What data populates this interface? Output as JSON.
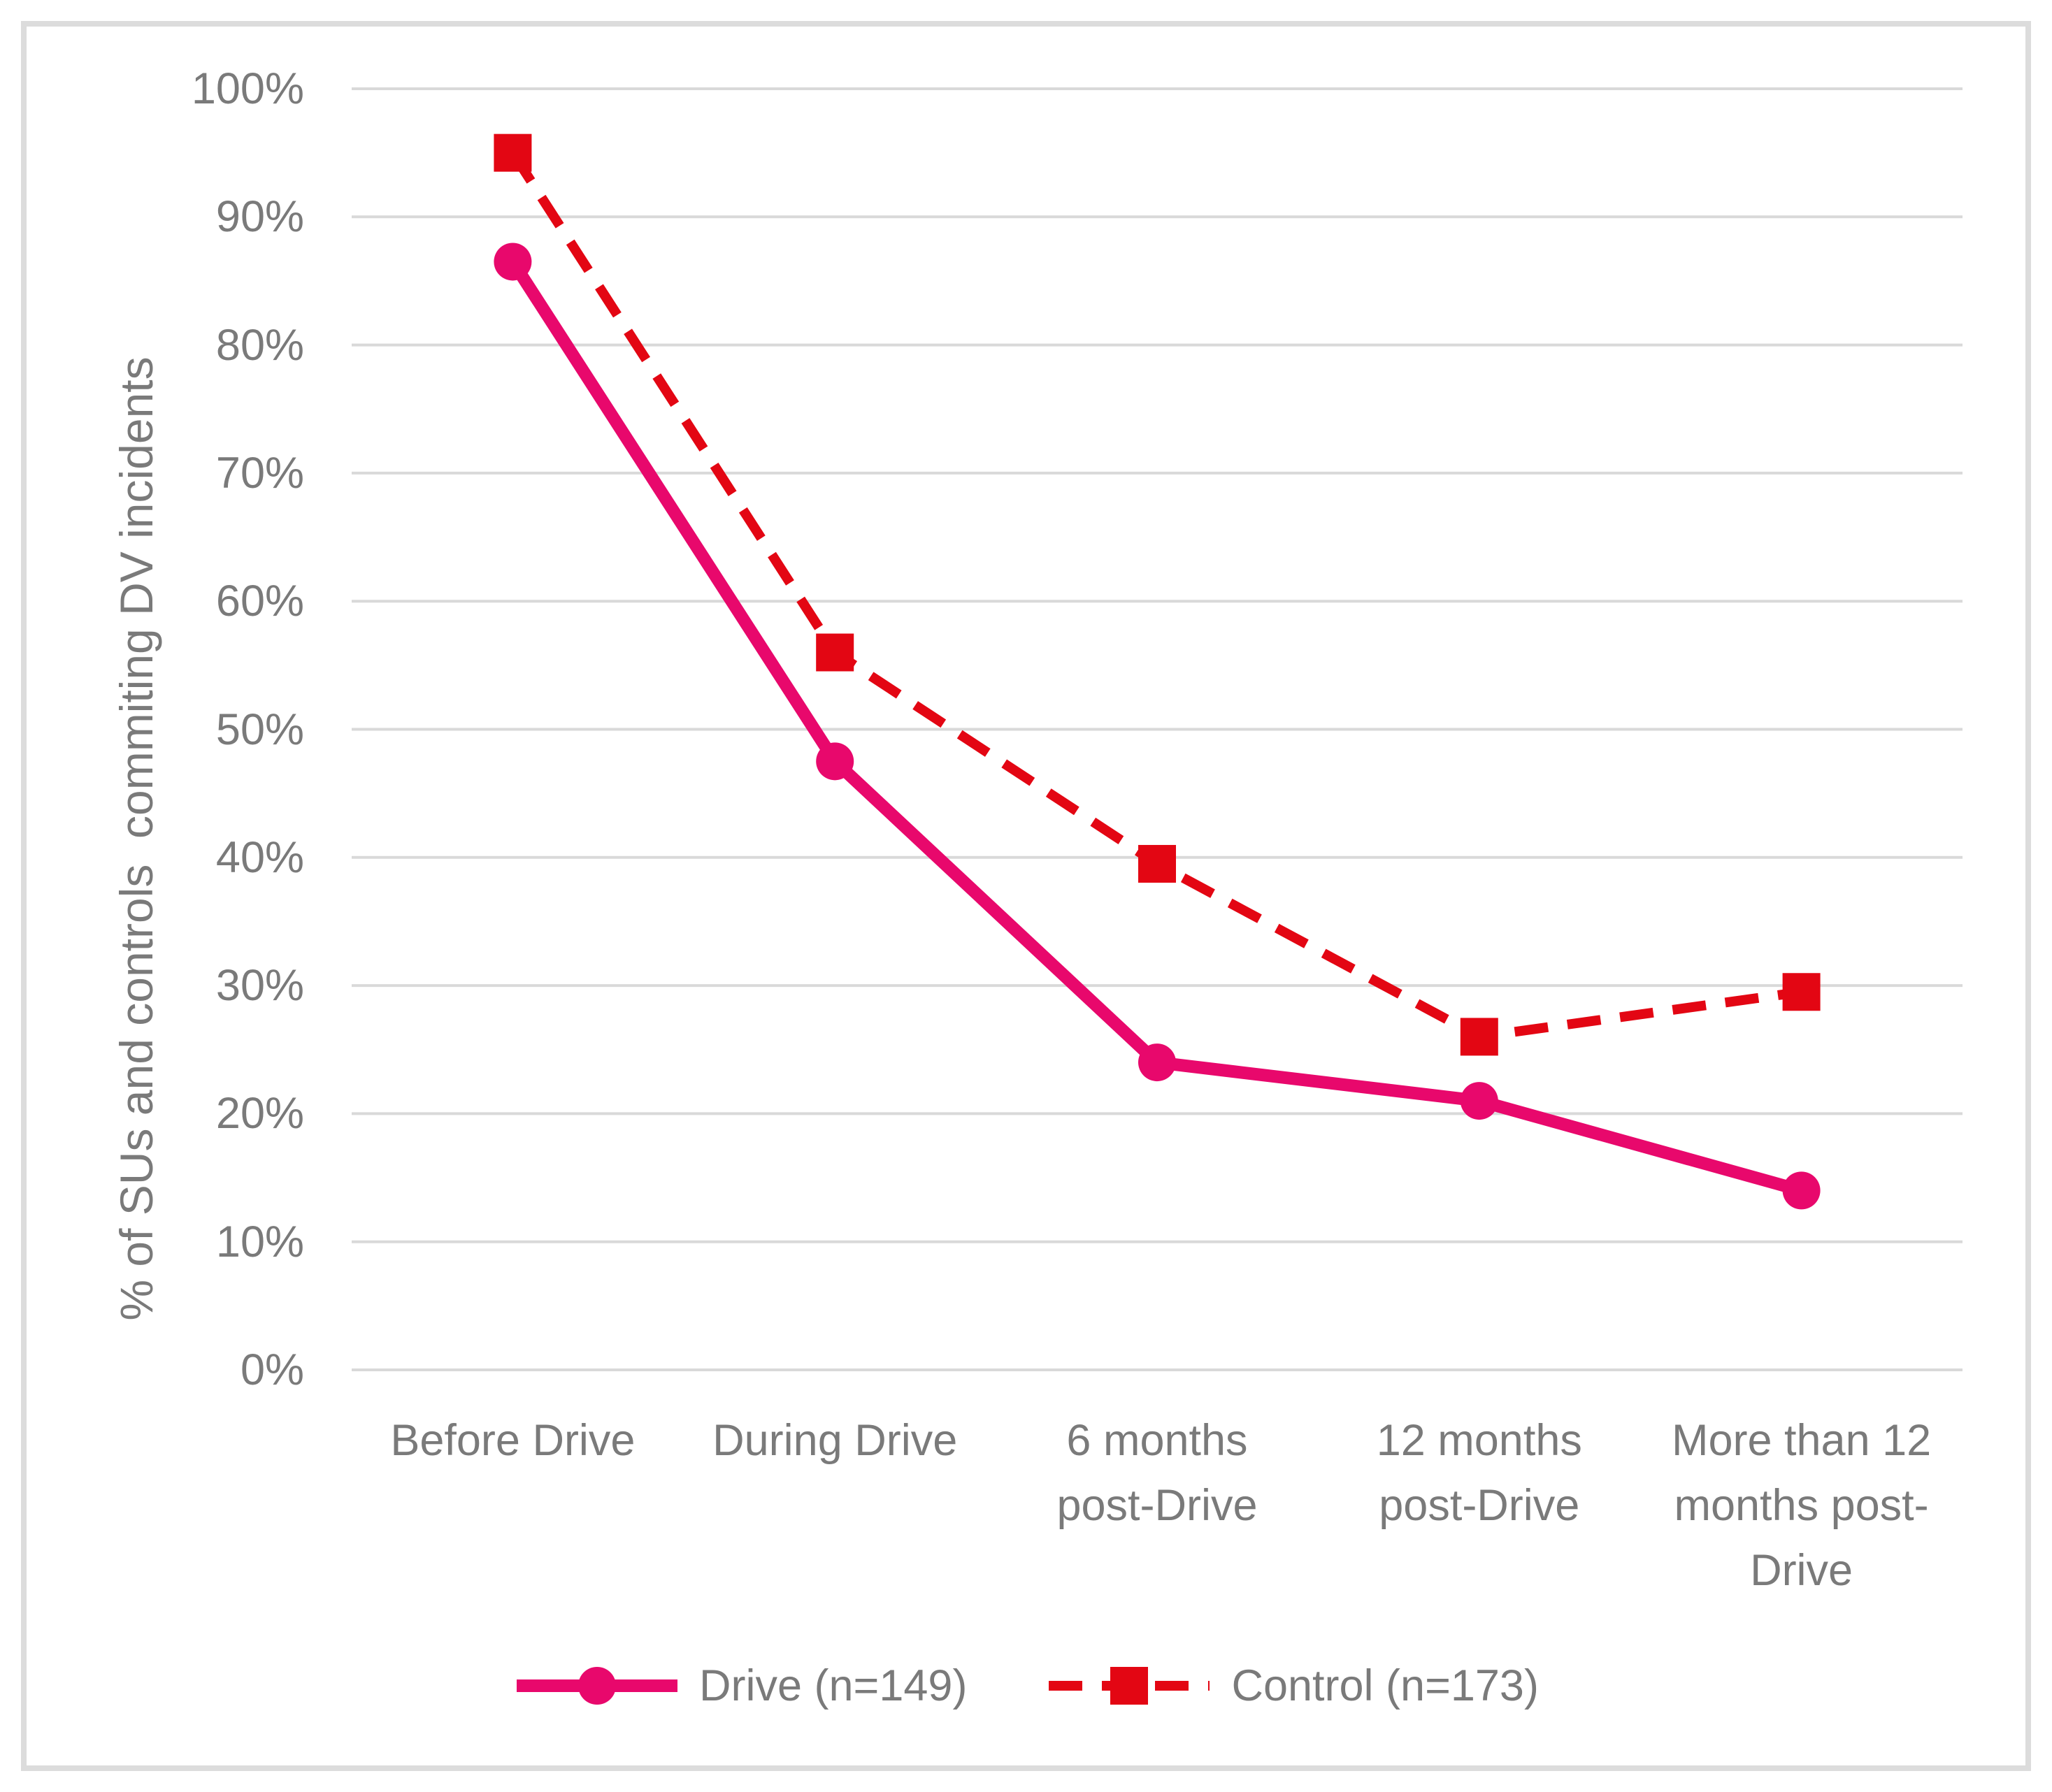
{
  "chart_data": {
    "type": "line",
    "categories": [
      "Before Drive",
      "During Drive",
      "6 months\npost-Drive",
      "12 months\npost-Drive",
      "More than 12\nmonths post-\nDrive"
    ],
    "series": [
      {
        "name": "Drive (n=149)",
        "values": [
          86.5,
          47.5,
          24,
          21,
          14
        ],
        "color": "#E8086C",
        "line_style": "solid",
        "marker": "circle"
      },
      {
        "name": "Control (n=173)",
        "values": [
          95,
          56,
          39.5,
          26,
          29.5
        ],
        "color": "#E30613",
        "line_style": "dashed",
        "marker": "square"
      }
    ],
    "ylabel": "% of SUs and controls  commiting DV incidents",
    "ylim": [
      0,
      100
    ],
    "y_ticks": [
      "100%",
      "90%",
      "80%",
      "70%",
      "60%",
      "50%",
      "40%",
      "30%",
      "20%",
      "10%",
      "0%"
    ],
    "grid": "horizontal",
    "legend_position": "bottom",
    "gridline_color": "#D9D9D9",
    "text_color": "#7A7A7A",
    "frame_color": "#DCDCDC",
    "background": "#FFFFFF"
  }
}
